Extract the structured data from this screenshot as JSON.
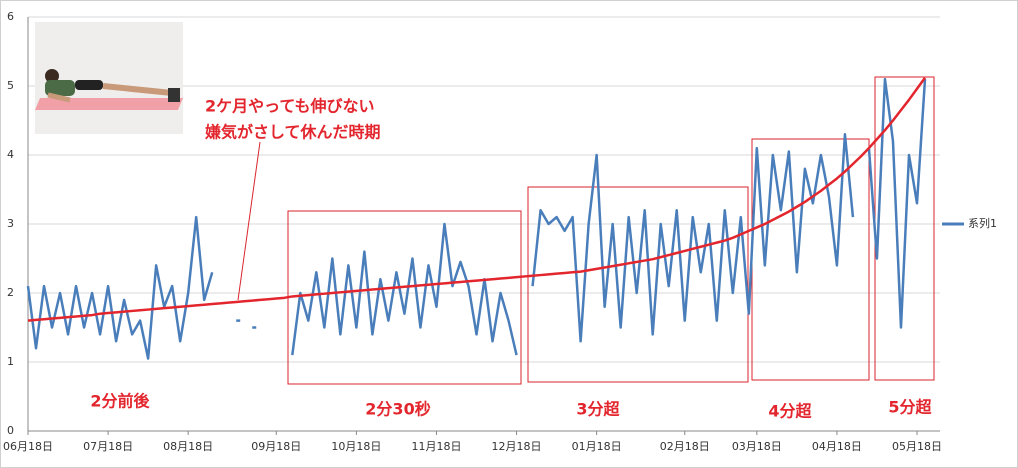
{
  "chart_data": {
    "type": "line",
    "categories": [
      "06月18日",
      null,
      null,
      null,
      null,
      null,
      null,
      null,
      null,
      null,
      "07月18日",
      null,
      null,
      null,
      null,
      null,
      null,
      null,
      null,
      null,
      "08月18日",
      null,
      null,
      null,
      null,
      null,
      null,
      null,
      null,
      null,
      null,
      "09月18日",
      null,
      null,
      null,
      null,
      null,
      null,
      null,
      null,
      null,
      "10月18日",
      null,
      null,
      null,
      null,
      null,
      null,
      null,
      null,
      null,
      "11月18日",
      null,
      null,
      null,
      null,
      null,
      null,
      null,
      null,
      null,
      "12月18日",
      null,
      null,
      null,
      null,
      null,
      null,
      null,
      null,
      null,
      "01月18日",
      null,
      null,
      null,
      null,
      null,
      null,
      null,
      null,
      null,
      null,
      "02月18日",
      null,
      null,
      null,
      null,
      null,
      null,
      null,
      null,
      "03月18日",
      null,
      null,
      null,
      null,
      null,
      null,
      null,
      null,
      null,
      "04月18日",
      null,
      null,
      null,
      null,
      null,
      null,
      null,
      null,
      null,
      "05月18日",
      null
    ],
    "series": [
      {
        "name": "系列1",
        "color": "#4a7ebb",
        "values": [
          2.1,
          1.2,
          2.1,
          1.5,
          2.0,
          1.4,
          2.1,
          1.5,
          2.0,
          1.4,
          2.1,
          1.3,
          1.9,
          1.4,
          1.6,
          1.05,
          2.4,
          1.8,
          2.1,
          1.3,
          2.0,
          3.1,
          1.9,
          2.3,
          null,
          null,
          1.6,
          null,
          1.5,
          null,
          null,
          null,
          null,
          1.1,
          2.0,
          1.6,
          2.3,
          1.5,
          2.5,
          1.4,
          2.4,
          1.5,
          2.6,
          1.4,
          2.2,
          1.6,
          2.3,
          1.7,
          2.5,
          1.5,
          2.4,
          1.8,
          3.0,
          2.1,
          2.45,
          2.1,
          1.4,
          2.2,
          1.3,
          2.0,
          1.6,
          1.1,
          null,
          2.1,
          3.2,
          3.0,
          3.1,
          2.9,
          3.1,
          1.3,
          3.0,
          4.0,
          1.8,
          3.0,
          1.5,
          3.1,
          2.0,
          3.2,
          1.4,
          3.0,
          2.1,
          3.2,
          1.6,
          3.1,
          2.3,
          3.0,
          1.6,
          3.2,
          2.0,
          3.1,
          1.7,
          4.1,
          2.4,
          4.0,
          3.2,
          4.05,
          2.3,
          3.8,
          3.3,
          4.0,
          3.4,
          2.4,
          4.3,
          3.1,
          null,
          4.1,
          2.5,
          5.1,
          4.2,
          1.5,
          4.0,
          3.3,
          5.1
        ]
      }
    ],
    "trend": {
      "color": "#e3262e",
      "values": [
        1.6,
        1.61,
        1.62,
        1.63,
        1.64,
        1.65,
        1.66,
        1.67,
        1.68,
        1.7,
        1.71,
        1.72,
        1.73,
        1.74,
        1.75,
        1.76,
        1.77,
        1.78,
        1.79,
        1.8,
        1.81,
        1.82,
        1.83,
        1.84,
        1.85,
        1.86,
        1.87,
        1.88,
        1.89,
        1.9,
        1.91,
        1.92,
        1.93,
        1.95,
        1.96,
        1.97,
        1.98,
        1.99,
        2.0,
        2.01,
        2.02,
        2.03,
        2.04,
        2.05,
        2.06,
        2.07,
        2.08,
        2.09,
        2.1,
        2.11,
        2.12,
        2.13,
        2.14,
        2.15,
        2.16,
        2.17,
        2.18,
        2.19,
        2.2,
        2.21,
        2.22,
        2.23,
        2.24,
        2.25,
        2.26,
        2.27,
        2.28,
        2.29,
        2.3,
        2.31,
        2.33,
        2.35,
        2.37,
        2.39,
        2.41,
        2.43,
        2.45,
        2.47,
        2.49,
        2.52,
        2.55,
        2.58,
        2.61,
        2.64,
        2.67,
        2.7,
        2.73,
        2.76,
        2.8,
        2.85,
        2.9,
        2.95,
        3.0,
        3.06,
        3.12,
        3.18,
        3.25,
        3.32,
        3.4,
        3.48,
        3.57,
        3.66,
        3.76,
        3.87,
        3.98,
        4.1,
        4.23,
        4.36,
        4.5,
        4.65,
        4.8,
        4.96,
        5.12
      ]
    },
    "ylim": [
      0,
      6
    ],
    "yticks": [
      0,
      1,
      2,
      3,
      4,
      5,
      6
    ],
    "grid": true,
    "legend": "right",
    "note": [
      "2ケ月やっても伸びない",
      "嫌気がさして休んだ時期"
    ],
    "labels": [
      "2分前後",
      "2分30秒",
      "3分超",
      "4分超",
      "5分超"
    ]
  }
}
